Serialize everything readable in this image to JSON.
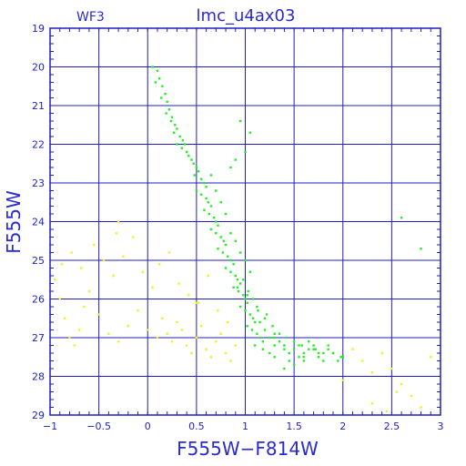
{
  "chart_data": {
    "type": "scatter",
    "title": "lmc_u4ax03",
    "corner_label": "WF3",
    "xlabel": "F555W−F814W",
    "ylabel": "F555W",
    "xlim": [
      -1,
      3
    ],
    "ylim": [
      29,
      19
    ],
    "y_inverted": true,
    "grid": true,
    "x_ticks": [
      -1,
      -0.5,
      0,
      0.5,
      1,
      1.5,
      2,
      2.5,
      3
    ],
    "x_tick_labels": [
      "−1",
      "−0.5",
      "0",
      "0.5",
      "1",
      "1.5",
      "2",
      "2.5",
      "3"
    ],
    "y_ticks": [
      19,
      20,
      21,
      22,
      23,
      24,
      25,
      26,
      27,
      28,
      29
    ],
    "y_tick_labels": [
      "19",
      "20",
      "21",
      "22",
      "23",
      "24",
      "25",
      "26",
      "27",
      "28",
      "29"
    ],
    "colors": {
      "frame": "#1f1fbf",
      "grid": "#1f1fbf",
      "series_1": "#22ee22",
      "series_2": "#f2ee22"
    },
    "series": [
      {
        "color": "#22ee22",
        "x": [
          0.05,
          0.1,
          0.12,
          0.15,
          0.18,
          0.2,
          0.22,
          0.25,
          0.28,
          0.3,
          0.08,
          0.14,
          0.19,
          0.24,
          0.27,
          0.33,
          0.36,
          0.3,
          0.35,
          0.4,
          0.42,
          0.38,
          0.45,
          0.47,
          0.5,
          0.52,
          0.48,
          0.55,
          0.58,
          0.6,
          0.5,
          0.55,
          0.6,
          0.62,
          0.65,
          0.58,
          0.63,
          0.68,
          0.7,
          0.72,
          0.65,
          0.7,
          0.75,
          0.78,
          0.8,
          0.72,
          0.77,
          0.82,
          0.85,
          0.88,
          0.8,
          0.85,
          0.9,
          0.92,
          0.95,
          0.88,
          0.93,
          0.98,
          1.0,
          1.02,
          0.95,
          1.0,
          1.05,
          1.08,
          1.1,
          1.02,
          1.07,
          1.12,
          1.15,
          1.18,
          1.1,
          1.15,
          1.2,
          1.25,
          1.3,
          1.18,
          1.25,
          1.3,
          1.35,
          1.4,
          1.3,
          1.4,
          1.45,
          1.5,
          1.55,
          1.45,
          1.55,
          1.6,
          1.65,
          1.7,
          1.6,
          1.7,
          1.75,
          1.8,
          1.85,
          1.75,
          1.85,
          1.9,
          1.95,
          2.0,
          0.9,
          0.95,
          1.0,
          1.05,
          0.85,
          0.75,
          0.8,
          0.7,
          0.65,
          0.98,
          1.03,
          1.08,
          1.13,
          1.2,
          1.28,
          1.35,
          1.42,
          1.5,
          1.58,
          1.65,
          1.72,
          1.8,
          1.9,
          1.98,
          1.6,
          1.5,
          1.4,
          1.3,
          1.22,
          1.12,
          1.02,
          0.92,
          2.6,
          2.8,
          0.95,
          1.0,
          0.9,
          0.85,
          1.05
        ],
        "y": [
          20.0,
          20.1,
          20.3,
          20.5,
          20.7,
          20.9,
          21.1,
          21.3,
          21.5,
          21.6,
          20.4,
          20.8,
          21.2,
          21.4,
          21.7,
          21.8,
          21.9,
          22.0,
          22.1,
          22.2,
          22.3,
          22.0,
          22.4,
          22.5,
          22.6,
          22.7,
          22.8,
          22.9,
          23.0,
          23.1,
          23.2,
          23.3,
          23.4,
          23.5,
          23.6,
          23.7,
          23.8,
          23.9,
          24.0,
          24.1,
          24.2,
          24.3,
          24.4,
          24.5,
          24.6,
          24.7,
          24.8,
          24.9,
          25.0,
          25.1,
          25.2,
          25.3,
          25.4,
          25.5,
          25.6,
          25.7,
          25.8,
          25.9,
          26.0,
          26.1,
          26.2,
          26.3,
          26.4,
          26.5,
          26.6,
          26.7,
          26.8,
          26.9,
          27.0,
          27.1,
          27.2,
          26.6,
          26.8,
          27.0,
          27.2,
          27.3,
          27.4,
          27.0,
          27.1,
          27.3,
          27.5,
          27.2,
          27.4,
          27.3,
          27.5,
          27.6,
          27.2,
          27.4,
          27.1,
          27.3,
          27.5,
          27.2,
          27.4,
          27.6,
          27.3,
          27.5,
          27.2,
          27.4,
          27.6,
          27.5,
          24.5,
          24.8,
          25.0,
          25.3,
          24.3,
          23.5,
          23.8,
          23.2,
          22.8,
          25.5,
          25.8,
          26.0,
          26.3,
          26.5,
          26.7,
          26.9,
          27.0,
          27.1,
          27.2,
          27.3,
          27.3,
          27.4,
          27.4,
          27.5,
          27.6,
          27.7,
          27.8,
          26.9,
          26.4,
          26.2,
          25.9,
          25.7,
          23.9,
          24.7,
          21.4,
          22.2,
          22.4,
          22.6,
          21.7
        ]
      },
      {
        "color": "#f2ee22",
        "x": [
          -0.9,
          -0.85,
          -0.8,
          -0.75,
          -0.7,
          -0.65,
          -0.6,
          -0.5,
          -0.4,
          -0.3,
          -0.2,
          -0.1,
          0.0,
          0.1,
          0.15,
          0.2,
          0.25,
          0.3,
          0.35,
          0.4,
          0.45,
          0.5,
          0.55,
          0.6,
          0.65,
          0.7,
          0.75,
          0.8,
          0.85,
          0.9,
          -0.95,
          -0.88,
          -0.78,
          -0.68,
          -0.55,
          -0.45,
          -0.35,
          -0.25,
          -0.15,
          -0.05,
          0.05,
          0.12,
          0.22,
          0.32,
          0.42,
          0.52,
          0.62,
          0.72,
          0.82,
          2.1,
          2.2,
          2.3,
          2.4,
          2.5,
          2.6,
          2.7,
          2.8,
          2.9,
          2.3,
          2.45,
          2.55,
          -0.3,
          -0.32,
          0.5,
          2.0
        ],
        "y": [
          26.0,
          26.5,
          27.0,
          27.2,
          26.8,
          26.2,
          25.8,
          26.4,
          26.9,
          27.1,
          26.7,
          26.3,
          26.8,
          27.0,
          26.5,
          26.9,
          27.1,
          26.6,
          26.8,
          27.2,
          27.4,
          27.0,
          26.7,
          27.3,
          27.5,
          27.1,
          26.9,
          27.4,
          27.6,
          27.2,
          25.5,
          25.1,
          24.8,
          25.2,
          24.6,
          25.0,
          25.4,
          24.9,
          24.4,
          25.3,
          25.7,
          25.1,
          24.8,
          25.6,
          25.9,
          26.1,
          25.4,
          26.3,
          26.6,
          27.3,
          27.6,
          27.9,
          27.4,
          27.8,
          28.2,
          28.5,
          28.8,
          27.5,
          28.7,
          28.9,
          28.4,
          24.0,
          24.3,
          26.1,
          28.1
        ]
      }
    ]
  }
}
